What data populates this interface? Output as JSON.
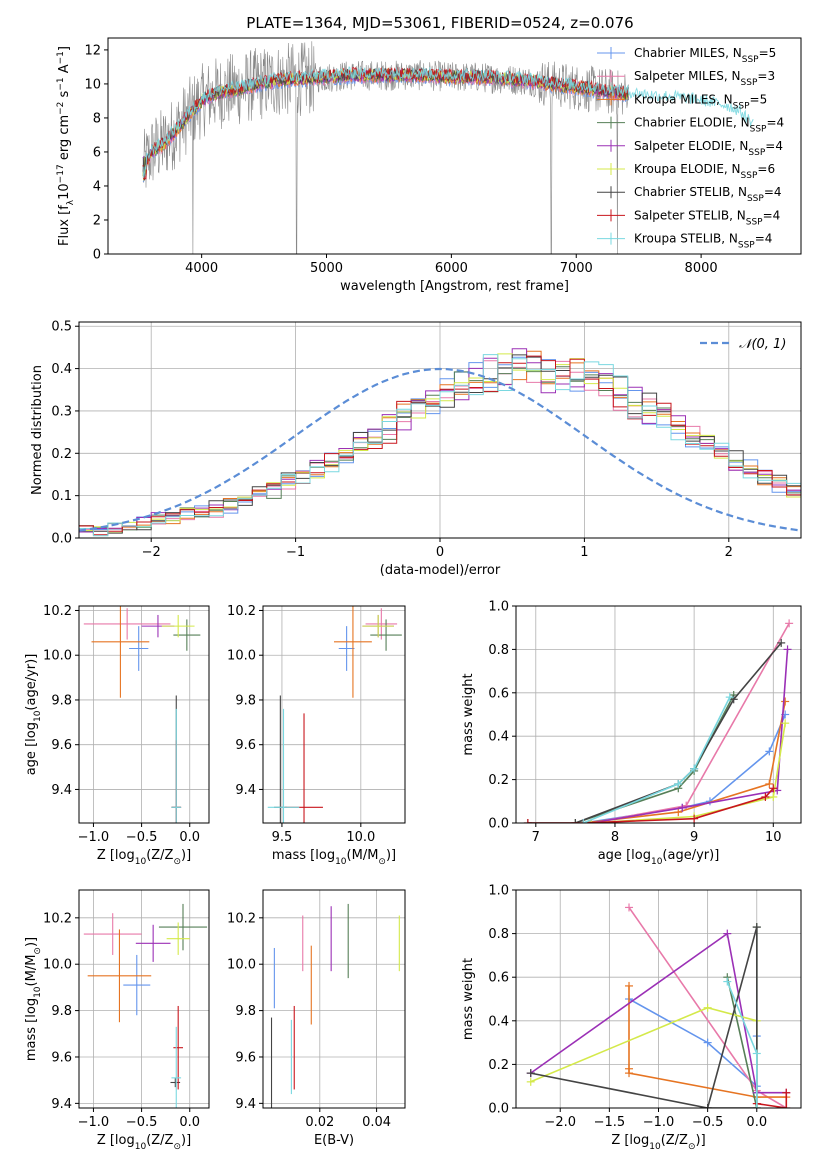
{
  "colors": {
    "series": [
      "#6495ed",
      "#e879a9",
      "#e67422",
      "#567f57",
      "#9b30b6",
      "#d4e94a",
      "#444444",
      "#c8161d",
      "#7ad8e0"
    ],
    "data_spectrum": "#888888",
    "normal": "#5b8dd6",
    "grid": "#b0b0b0"
  },
  "figure_title": "PLATE=1364, MJD=53061, FIBERID=0524, z=0.076",
  "legend_labels": [
    "Chabrier MILES, N$SSP$=5",
    "Salpeter MILES, N$SSP$=3",
    "Kroupa MILES, N$SSP$=5",
    "Chabrier ELODIE, N$SSP$=4",
    "Salpeter ELODIE, N$SSP$=4",
    "Kroupa ELODIE, N$SSP$=6",
    "Chabrier STELIB, N$SSP$=4",
    "Salpeter STELIB, N$SSP$=4",
    "Kroupa STELIB, N$SSP$=4"
  ],
  "chart_data": [
    {
      "id": "spectrum",
      "type": "line",
      "title": "PLATE=1364, MJD=53061, FIBERID=0524, z=0.076",
      "xlabel": "wavelength [Angstrom, rest frame]",
      "ylabel": "Flux [f$λ$10$−17$ erg cm$−2$ s$−1$ A$−1$]",
      "xlim": [
        3250,
        8800
      ],
      "ylim": [
        0,
        12.7
      ],
      "xticks": [
        4000,
        5000,
        6000,
        7000,
        8000
      ],
      "yticks": [
        0,
        2,
        4,
        6,
        8,
        10,
        12
      ],
      "grid": false,
      "legend": "upper right",
      "series_names": [
        "Chabrier MILES, N$SSP$=5",
        "Salpeter MILES, N$SSP$=3",
        "Kroupa MILES, N$SSP$=5",
        "Chabrier ELODIE, N$SSP$=4",
        "Salpeter ELODIE, N$SSP$=4",
        "Kroupa ELODIE, N$SSP$=6",
        "Chabrier STELIB, N$SSP$=4",
        "Salpeter STELIB, N$SSP$=4",
        "Kroupa STELIB, N$SSP$=4"
      ],
      "continuum": {
        "x": [
          3530,
          3600,
          3700,
          3800,
          3900,
          4000,
          4100,
          4200,
          4300,
          4400,
          4600,
          4800,
          5000,
          5200,
          5400,
          5600,
          5800,
          6000,
          6200,
          6400,
          6600,
          6800,
          7000,
          7200,
          7400,
          7600,
          7800,
          8000,
          8200,
          8300,
          8420
        ],
        "y": [
          5.0,
          6.0,
          6.5,
          7.3,
          8.2,
          9.0,
          9.4,
          9.6,
          9.7,
          9.9,
          10.2,
          10.3,
          10.4,
          10.5,
          10.5,
          10.5,
          10.5,
          10.4,
          10.4,
          10.3,
          10.2,
          10.0,
          9.8,
          9.6,
          9.4,
          9.2,
          9.1,
          8.9,
          8.6,
          8.3,
          7.5
        ]
      },
      "absorption_features": [
        {
          "x": 3930,
          "y": 0.0
        },
        {
          "x": 4760,
          "y": 0.0
        },
        {
          "x": 6800,
          "y": 0.0
        },
        {
          "x": 7330,
          "y": 0.0
        }
      ]
    },
    {
      "id": "residuals",
      "type": "histogram",
      "xlabel": "(data-model)/error",
      "ylabel": "Normed distribution",
      "xlim": [
        -2.5,
        2.5
      ],
      "ylim": [
        0,
        0.51
      ],
      "xticks": [
        -2,
        -1,
        0,
        1,
        2
      ],
      "yticks": [
        0.0,
        0.1,
        0.2,
        0.3,
        0.4,
        0.5
      ],
      "grid": true,
      "legend": "upper right",
      "reference_curve": {
        "name": "$N(0,1)$",
        "mu": 0,
        "sigma": 1
      },
      "bin_width": 0.1,
      "x_start": -2.5,
      "base_values": [
        0.018,
        0.022,
        0.026,
        0.03,
        0.036,
        0.041,
        0.047,
        0.056,
        0.064,
        0.071,
        0.079,
        0.09,
        0.102,
        0.115,
        0.129,
        0.145,
        0.162,
        0.18,
        0.2,
        0.219,
        0.24,
        0.261,
        0.282,
        0.303,
        0.323,
        0.342,
        0.36,
        0.372,
        0.383,
        0.391,
        0.397,
        0.399,
        0.397,
        0.391,
        0.383,
        0.372,
        0.36,
        0.342,
        0.323,
        0.303,
        0.282,
        0.261,
        0.24,
        0.219,
        0.2,
        0.18,
        0.162,
        0.145,
        0.129,
        0.115
      ]
    },
    {
      "id": "age_vs_Z",
      "type": "errorbar",
      "xlabel": "Z [log$10$(Z/Z$⊙$)]",
      "ylabel": "age  [log$10$(age/yr)]",
      "xlim": [
        -1.15,
        0.2
      ],
      "ylim": [
        9.25,
        10.22
      ],
      "xticks": [
        -1.0,
        -0.5,
        0.0
      ],
      "yticks": [
        9.4,
        9.6,
        9.8,
        10.0,
        10.2
      ],
      "grid": true,
      "points": [
        {
          "series": 0,
          "x": -0.53,
          "y": 10.03,
          "xerr": 0.1,
          "yerr": 0.1
        },
        {
          "series": 1,
          "x": -0.65,
          "y": 10.14,
          "xerr": 0.45,
          "yerr": 0.07
        },
        {
          "series": 2,
          "x": -0.72,
          "y": 10.06,
          "xerr": 0.3,
          "yerr": 0.25
        },
        {
          "series": 3,
          "x": -0.03,
          "y": 10.09,
          "xerr": 0.14,
          "yerr": 0.07
        },
        {
          "series": 4,
          "x": -0.33,
          "y": 10.13,
          "xerr": 0.17,
          "yerr": 0.05
        },
        {
          "series": 5,
          "x": -0.12,
          "y": 10.13,
          "xerr": 0.17,
          "yerr": 0.05
        },
        {
          "series": 6,
          "x": -0.14,
          "y": 9.32,
          "xerr": 0.05,
          "yerr": 0.5
        },
        {
          "series": 7,
          "x": -0.14,
          "y": 9.32,
          "xerr": 0.05,
          "yerr": 0.3
        },
        {
          "series": 8,
          "x": -0.14,
          "y": 9.32,
          "xerr": 0.05,
          "yerr": 0.44
        }
      ]
    },
    {
      "id": "age_vs_mass",
      "type": "errorbar",
      "xlabel": "mass [log$10$(M/M$⊙$)]",
      "ylabel": "",
      "xlim": [
        9.38,
        10.28
      ],
      "ylim": [
        9.25,
        10.22
      ],
      "xticks": [
        9.5,
        10.0
      ],
      "yticks": [
        9.4,
        9.6,
        9.8,
        10.0,
        10.2
      ],
      "grid": true,
      "points": [
        {
          "series": 0,
          "x": 9.91,
          "y": 10.03,
          "xerr": 0.05,
          "yerr": 0.1
        },
        {
          "series": 1,
          "x": 10.13,
          "y": 10.14,
          "xerr": 0.1,
          "yerr": 0.07
        },
        {
          "series": 2,
          "x": 9.95,
          "y": 10.06,
          "xerr": 0.12,
          "yerr": 0.25
        },
        {
          "series": 3,
          "x": 10.16,
          "y": 10.09,
          "xerr": 0.1,
          "yerr": 0.07
        },
        {
          "series": 4,
          "x": 10.11,
          "y": 10.13,
          "xerr": 0.1,
          "yerr": 0.05
        },
        {
          "series": 5,
          "x": 10.11,
          "y": 10.13,
          "xerr": 0.1,
          "yerr": 0.05
        },
        {
          "series": 6,
          "x": 9.49,
          "y": 9.32,
          "xerr": 0.04,
          "yerr": 0.5
        },
        {
          "series": 7,
          "x": 9.64,
          "y": 9.32,
          "xerr": 0.12,
          "yerr": 0.42
        },
        {
          "series": 8,
          "x": 9.51,
          "y": 9.32,
          "xerr": 0.1,
          "yerr": 0.44
        }
      ]
    },
    {
      "id": "massweight_vs_age",
      "type": "line",
      "xlabel": "age  [log$10$(age/yr)]",
      "ylabel": "mass weight",
      "xlim": [
        6.75,
        10.35
      ],
      "ylim": [
        0,
        1.0
      ],
      "xticks": [
        7,
        8,
        9,
        10
      ],
      "yticks": [
        0.0,
        0.2,
        0.4,
        0.6,
        0.8,
        1.0
      ],
      "grid": true,
      "series": [
        {
          "series": 0,
          "x": [
            7.6,
            8.85,
            9.2,
            9.95,
            10.15
          ],
          "y": [
            0.0,
            0.07,
            0.1,
            0.33,
            0.5
          ]
        },
        {
          "series": 1,
          "x": [
            7.7,
            8.9,
            10.2
          ],
          "y": [
            0.0,
            0.08,
            0.92
          ]
        },
        {
          "series": 2,
          "x": [
            7.6,
            8.8,
            9.95,
            10.15
          ],
          "y": [
            0.0,
            0.05,
            0.18,
            0.56
          ]
        },
        {
          "series": 3,
          "x": [
            7.5,
            8.8,
            9.0,
            9.5
          ],
          "y": [
            0.0,
            0.16,
            0.24,
            0.59
          ]
        },
        {
          "series": 4,
          "x": [
            7.7,
            8.85,
            10.05,
            10.18
          ],
          "y": [
            0.0,
            0.07,
            0.15,
            0.8
          ]
        },
        {
          "series": 5,
          "x": [
            7.7,
            9.0,
            10.0,
            10.15
          ],
          "y": [
            0.0,
            0.03,
            0.12,
            0.46
          ]
        },
        {
          "series": 6,
          "x": [
            6.9,
            7.5,
            8.8,
            9.0,
            9.5,
            10.1
          ],
          "y": [
            0.0,
            0.0,
            0.18,
            0.25,
            0.57,
            0.83
          ]
        },
        {
          "series": 7,
          "x": [
            6.9,
            7.6,
            9.0,
            9.9,
            10.0
          ],
          "y": [
            0.0,
            0.0,
            0.02,
            0.12,
            0.16
          ]
        },
        {
          "series": 8,
          "x": [
            7.6,
            8.8,
            9.0,
            9.45
          ],
          "y": [
            0.0,
            0.18,
            0.25,
            0.58
          ]
        }
      ]
    },
    {
      "id": "mass_vs_Z",
      "type": "errorbar",
      "xlabel": "Z [log$10$(Z/Z$⊙$)]",
      "ylabel": "mass [log$10$(M/M$⊙$)]",
      "xlim": [
        -1.15,
        0.2
      ],
      "ylim": [
        9.38,
        10.32
      ],
      "xticks": [
        -1.0,
        -0.5,
        0.0
      ],
      "yticks": [
        9.4,
        9.6,
        9.8,
        10.0,
        10.2
      ],
      "grid": true,
      "points": [
        {
          "series": 0,
          "x": -0.55,
          "y": 9.91,
          "xerr": 0.14,
          "yerr": 0.13
        },
        {
          "series": 1,
          "x": -0.8,
          "y": 10.13,
          "xerr": 0.3,
          "yerr": 0.09
        },
        {
          "series": 2,
          "x": -0.73,
          "y": 9.95,
          "xerr": 0.33,
          "yerr": 0.2
        },
        {
          "series": 3,
          "x": -0.07,
          "y": 10.16,
          "xerr": 0.25,
          "yerr": 0.1
        },
        {
          "series": 4,
          "x": -0.38,
          "y": 10.09,
          "xerr": 0.18,
          "yerr": 0.08
        },
        {
          "series": 5,
          "x": -0.12,
          "y": 10.11,
          "xerr": 0.12,
          "yerr": 0.07
        },
        {
          "series": 6,
          "x": -0.15,
          "y": 9.49,
          "xerr": 0.05,
          "yerr": 0.02
        },
        {
          "series": 7,
          "x": -0.12,
          "y": 9.64,
          "xerr": 0.05,
          "yerr": 0.18
        },
        {
          "series": 8,
          "x": -0.14,
          "y": 9.51,
          "xerr": 0.05,
          "yerr": 0.22
        }
      ]
    },
    {
      "id": "ebv",
      "type": "errorbar",
      "xlabel": "E(B-V)",
      "ylabel": "",
      "xlim": [
        0.0,
        0.05
      ],
      "ylim": [
        9.38,
        10.32
      ],
      "xticks": [
        0.02,
        0.04
      ],
      "yticks": [
        9.4,
        9.6,
        9.8,
        10.0,
        10.2
      ],
      "grid": true,
      "points": [
        {
          "series": 0,
          "x": 0.004,
          "y": 9.94,
          "yerr": 0.13
        },
        {
          "series": 1,
          "x": 0.014,
          "y": 10.09,
          "yerr": 0.12
        },
        {
          "series": 2,
          "x": 0.017,
          "y": 9.91,
          "yerr": 0.17
        },
        {
          "series": 3,
          "x": 0.03,
          "y": 10.1,
          "yerr": 0.16
        },
        {
          "series": 4,
          "x": 0.024,
          "y": 10.11,
          "yerr": 0.14
        },
        {
          "series": 5,
          "x": 0.048,
          "y": 10.09,
          "yerr": 0.12
        },
        {
          "series": 6,
          "x": 0.003,
          "y": 9.56,
          "yerr": 0.21
        },
        {
          "series": 7,
          "x": 0.011,
          "y": 9.64,
          "yerr": 0.18
        },
        {
          "series": 8,
          "x": 0.01,
          "y": 9.6,
          "yerr": 0.16
        }
      ]
    },
    {
      "id": "massweight_vs_Z",
      "type": "line",
      "xlabel": "Z [log$10$(Z/Z$⊙$)]",
      "ylabel": "mass weight",
      "xlim": [
        -2.45,
        0.45
      ],
      "ylim": [
        0,
        1.0
      ],
      "xticks": [
        -2.0,
        -1.5,
        -1.0,
        -0.5,
        0.0
      ],
      "yticks": [
        0.0,
        0.2,
        0.4,
        0.6,
        0.8,
        1.0
      ],
      "grid": true,
      "series": [
        {
          "series": 0,
          "x": [
            -1.3,
            -0.5,
            0.0,
            0.0,
            0.0
          ],
          "y": [
            0.5,
            0.3,
            0.1,
            0.07,
            0.33
          ]
        },
        {
          "series": 1,
          "x": [
            -1.3,
            0.0,
            0.3
          ],
          "y": [
            0.92,
            0.08,
            0.0
          ]
        },
        {
          "series": 2,
          "x": [
            -1.3,
            -1.3,
            -1.3,
            0.0,
            0.3
          ],
          "y": [
            0.56,
            0.18,
            0.16,
            0.05,
            0.05
          ]
        },
        {
          "series": 3,
          "x": [
            -0.3,
            0.0,
            0.0
          ],
          "y": [
            0.6,
            0.0,
            0.83
          ]
        },
        {
          "series": 4,
          "x": [
            -2.3,
            -0.3,
            0.0,
            0.3
          ],
          "y": [
            0.16,
            0.8,
            0.07,
            0.07
          ]
        },
        {
          "series": 5,
          "x": [
            -2.3,
            -0.5,
            0.0,
            0.0
          ],
          "y": [
            0.12,
            0.46,
            0.4,
            0.0
          ]
        },
        {
          "series": 6,
          "x": [
            -2.3,
            -0.5,
            0.0,
            0.0,
            -0.5
          ],
          "y": [
            0.16,
            0.0,
            0.83,
            0.0,
            0.0
          ]
        },
        {
          "series": 7,
          "x": [
            0.0,
            0.3,
            0.3
          ],
          "y": [
            0.02,
            0.0,
            0.07
          ]
        },
        {
          "series": 8,
          "x": [
            0.0,
            0.0,
            -0.3
          ],
          "y": [
            0.0,
            0.25,
            0.58
          ]
        }
      ]
    }
  ]
}
